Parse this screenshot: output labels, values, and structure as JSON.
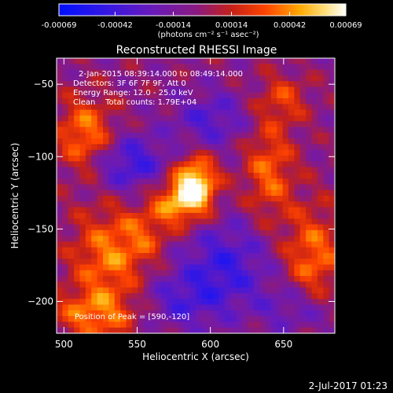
{
  "chart_data": {
    "type": "heatmap",
    "title": "Reconstructed RHESSI Image",
    "xlabel": "Heliocentric X (arcsec)",
    "ylabel": "Heliocentric Y (arcsec)",
    "xlim": [
      495,
      685
    ],
    "ylim": [
      -222,
      -32
    ],
    "x_ticks": [
      500,
      550,
      600,
      650
    ],
    "y_ticks": [
      -50,
      -100,
      -150,
      -200
    ],
    "colorbar": {
      "ticks": [
        "-0.00069",
        "-0.00042",
        "-0.00014",
        "0.00014",
        "0.00042",
        "0.00069"
      ],
      "range": [
        -0.00069,
        0.00069
      ],
      "unit_label": "(photons cm⁻² s⁻¹ asec⁻²)"
    },
    "info_lines": [
      "2-Jan-2015 08:39:14.000 to 08:49:14.000",
      "Detectors: 3F 6F 7F 9F, Att 0",
      "Energy Range: 12.0 - 25.0 keV",
      "Clean    Total counts: 1.79E+04"
    ],
    "peak_label": "Position of Peak = [590,-120]",
    "peak": {
      "x": 590,
      "y": -120
    },
    "timestamp": "2-Jul-2017 01:23",
    "sources": [
      {
        "x": 590,
        "y": -120,
        "amp": 1.0,
        "sx": 10,
        "sy": 14
      },
      {
        "x": 575,
        "y": -132,
        "amp": 0.55,
        "sx": 12,
        "sy": 12
      },
      {
        "x": 515,
        "y": -85,
        "amp": 0.6,
        "sx": 14,
        "sy": 18
      },
      {
        "x": 530,
        "y": -170,
        "amp": 0.55,
        "sx": 18,
        "sy": 25
      },
      {
        "x": 520,
        "y": -210,
        "amp": 0.5,
        "sx": 20,
        "sy": 12
      },
      {
        "x": 640,
        "y": -110,
        "amp": 0.5,
        "sx": 12,
        "sy": 25
      },
      {
        "x": 670,
        "y": -170,
        "amp": 0.55,
        "sx": 14,
        "sy": 25
      },
      {
        "x": 650,
        "y": -60,
        "amp": 0.35,
        "sx": 12,
        "sy": 12
      },
      {
        "x": 555,
        "y": -155,
        "amp": 0.3,
        "sx": 12,
        "sy": 14
      },
      {
        "x": 545,
        "y": -105,
        "amp": -0.55,
        "sx": 18,
        "sy": 14
      },
      {
        "x": 610,
        "y": -175,
        "amp": -0.5,
        "sx": 22,
        "sy": 22
      },
      {
        "x": 600,
        "y": -75,
        "amp": -0.4,
        "sx": 18,
        "sy": 14
      },
      {
        "x": 660,
        "y": -205,
        "amp": -0.35,
        "sx": 18,
        "sy": 12
      },
      {
        "x": 580,
        "y": -200,
        "amp": -0.35,
        "sx": 20,
        "sy": 14
      }
    ]
  }
}
